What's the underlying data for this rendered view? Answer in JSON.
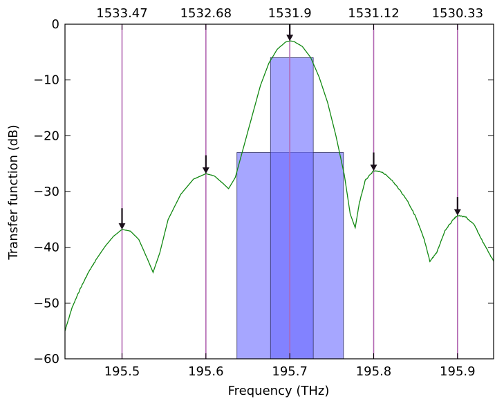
{
  "chart_data": {
    "type": "line",
    "title": "",
    "xlabel": "Frequency (THz)",
    "ylabel": "Transfer function (dB)",
    "xlim": [
      195.432,
      195.943
    ],
    "ylim": [
      -60,
      0
    ],
    "xticks": [
      195.5,
      195.6,
      195.7,
      195.8,
      195.9
    ],
    "yticks": [
      0,
      -10,
      -20,
      -30,
      -40,
      -50,
      -60
    ],
    "top_axis": {
      "ticks_at": [
        195.5,
        195.6,
        195.7,
        195.8,
        195.9
      ],
      "labels": [
        "1533.47",
        "1532.68",
        "1531.9",
        "1531.12",
        "1530.33"
      ]
    },
    "grid": false,
    "channel_lines": {
      "color": "#b266b2",
      "x": [
        195.5,
        195.6,
        195.7,
        195.8,
        195.9
      ]
    },
    "series": [
      {
        "color": "#118811",
        "points": [
          [
            195.432,
            -55
          ],
          [
            195.44,
            -51
          ],
          [
            195.45,
            -47.5
          ],
          [
            195.46,
            -44.5
          ],
          [
            195.47,
            -42
          ],
          [
            195.48,
            -39.8
          ],
          [
            195.49,
            -38
          ],
          [
            195.5,
            -36.8
          ],
          [
            195.51,
            -37.1
          ],
          [
            195.52,
            -38.6
          ],
          [
            195.53,
            -42
          ],
          [
            195.537,
            -44.5
          ],
          [
            195.545,
            -41
          ],
          [
            195.555,
            -35
          ],
          [
            195.57,
            -30.5
          ],
          [
            195.585,
            -27.8
          ],
          [
            195.6,
            -26.8
          ],
          [
            195.61,
            -27.2
          ],
          [
            195.62,
            -28.5
          ],
          [
            195.627,
            -29.5
          ],
          [
            195.635,
            -27.5
          ],
          [
            195.645,
            -22
          ],
          [
            195.655,
            -16.5
          ],
          [
            195.665,
            -11
          ],
          [
            195.675,
            -7
          ],
          [
            195.685,
            -4.5
          ],
          [
            195.695,
            -3.2
          ],
          [
            195.7,
            -3
          ],
          [
            195.705,
            -3.1
          ],
          [
            195.715,
            -4
          ],
          [
            195.725,
            -6
          ],
          [
            195.735,
            -9.5
          ],
          [
            195.745,
            -14
          ],
          [
            195.755,
            -20
          ],
          [
            195.765,
            -27
          ],
          [
            195.772,
            -34
          ],
          [
            195.778,
            -36.5
          ],
          [
            195.783,
            -32
          ],
          [
            195.79,
            -28
          ],
          [
            195.8,
            -26.3
          ],
          [
            195.81,
            -26.5
          ],
          [
            195.82,
            -27.7
          ],
          [
            195.83,
            -29.5
          ],
          [
            195.84,
            -31.6
          ],
          [
            195.85,
            -34.5
          ],
          [
            195.86,
            -38.5
          ],
          [
            195.867,
            -42.5
          ],
          [
            195.875,
            -41
          ],
          [
            195.885,
            -37
          ],
          [
            195.895,
            -35
          ],
          [
            195.9,
            -34.3
          ],
          [
            195.91,
            -34.6
          ],
          [
            195.92,
            -36
          ],
          [
            195.93,
            -39
          ],
          [
            195.943,
            -42.5
          ]
        ]
      }
    ],
    "arrows": [
      {
        "x": 195.5,
        "y_from": -33,
        "y_to": -36.8
      },
      {
        "x": 195.6,
        "y_from": -23.5,
        "y_to": -26.8
      },
      {
        "x": 195.7,
        "y_from": 0,
        "y_to": -3
      },
      {
        "x": 195.8,
        "y_from": -23,
        "y_to": -26.3
      },
      {
        "x": 195.9,
        "y_from": -31,
        "y_to": -34.3
      }
    ],
    "shaded_regions": [
      {
        "x_from": 195.637,
        "x_to": 195.764,
        "y_from": -60,
        "y_to": -23,
        "color": "#6a6aff",
        "opacity": 0.6
      },
      {
        "x_from": 195.677,
        "x_to": 195.728,
        "y_from": -60,
        "y_to": -6,
        "color": "#6a6aff",
        "opacity": 0.6
      }
    ]
  }
}
